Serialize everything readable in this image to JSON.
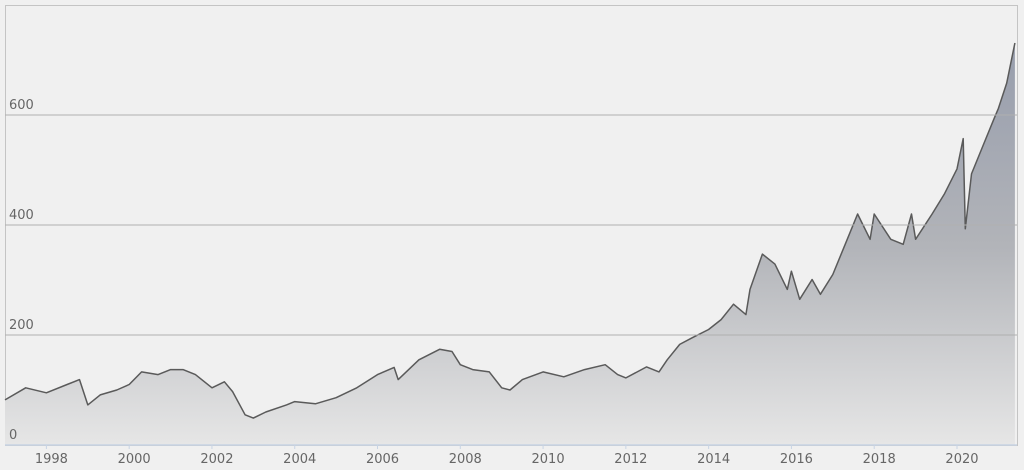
{
  "chart_data": {
    "type": "area",
    "x": [
      1997.0,
      1997.5,
      1998.0,
      1998.5,
      1998.8,
      1999.0,
      1999.3,
      1999.7,
      2000.0,
      2000.3,
      2000.7,
      2001.0,
      2001.3,
      2001.6,
      2002.0,
      2002.3,
      2002.5,
      2002.8,
      2003.0,
      2003.3,
      2003.8,
      2004.0,
      2004.5,
      2005.0,
      2005.5,
      2006.0,
      2006.4,
      2006.5,
      2007.0,
      2007.5,
      2007.8,
      2008.0,
      2008.3,
      2008.7,
      2009.0,
      2009.2,
      2009.5,
      2010.0,
      2010.5,
      2011.0,
      2011.5,
      2011.8,
      2012.0,
      2012.5,
      2012.8,
      2013.0,
      2013.3,
      2013.6,
      2014.0,
      2014.3,
      2014.6,
      2014.9,
      2015.0,
      2015.3,
      2015.6,
      2015.9,
      2016.0,
      2016.2,
      2016.5,
      2016.7,
      2017.0,
      2017.3,
      2017.6,
      2017.9,
      2018.0,
      2018.4,
      2018.7,
      2018.9,
      2019.0,
      2019.4,
      2019.7,
      2020.0,
      2020.15,
      2020.2,
      2020.35,
      2020.6,
      2020.9,
      2021.0,
      2021.2,
      2021.4
    ],
    "series": [
      {
        "color": "#5a5a5a",
        "values": [
          82,
          104,
          95,
          110,
          119,
          73,
          91,
          100,
          110,
          133,
          128,
          137,
          137,
          128,
          104,
          115,
          97,
          55,
          49,
          60,
          73,
          79,
          75,
          86,
          104,
          128,
          141,
          119,
          155,
          174,
          170,
          146,
          137,
          133,
          104,
          100,
          119,
          133,
          124,
          137,
          146,
          128,
          122,
          142,
          133,
          155,
          183,
          195,
          210,
          228,
          256,
          237,
          283,
          347,
          329,
          283,
          316,
          265,
          301,
          274,
          310,
          365,
          420,
          374,
          420,
          374,
          365,
          420,
          374,
          420,
          457,
          502,
          557,
          393,
          493,
          539,
          594,
          612,
          658,
          731
        ]
      }
    ],
    "xlim": [
      1997.0,
      2021.45
    ],
    "xticks": [
      1998,
      2000,
      2002,
      2004,
      2006,
      2008,
      2010,
      2012,
      2014,
      2016,
      2018,
      2020
    ],
    "ylim": [
      0,
      800
    ],
    "yticks": [
      0,
      200,
      400,
      600
    ],
    "grid": true
  }
}
